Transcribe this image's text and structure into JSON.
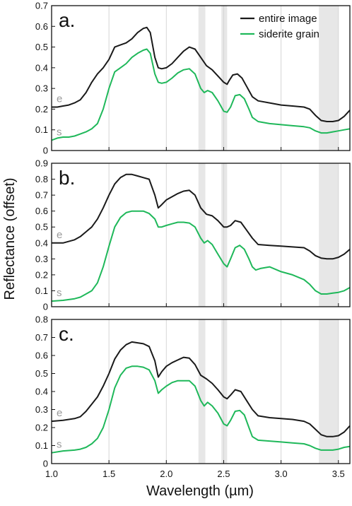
{
  "colors": {
    "entire": "#1a1a1a",
    "siderite": "#1fb85a",
    "band": "#e7e7e7",
    "grid": "#d6d6d6",
    "curve_letter": "#9a9a9a"
  },
  "chart_data": {
    "type": "line",
    "xlabel": "Wavelength (µm)",
    "ylabel": "Reflectance (offset)",
    "xlim": [
      1.0,
      3.6
    ],
    "x_ticks": [
      "1.0",
      "1.5",
      "2.0",
      "2.5",
      "3.0",
      "3.5"
    ],
    "x_tick_values": [
      1.0,
      1.5,
      2.0,
      2.5,
      3.0,
      3.5
    ],
    "grid_x": [
      1.5,
      2.0,
      2.5,
      3.0,
      3.5
    ],
    "shaded_bands": [
      [
        2.28,
        2.34
      ],
      [
        2.48,
        2.53
      ],
      [
        3.33,
        3.5
      ]
    ],
    "legend": {
      "placement": "top-right",
      "entries": [
        {
          "label": "entire image",
          "color": "#1a1a1a"
        },
        {
          "label": "siderite grain",
          "color": "#1fb85a"
        }
      ]
    },
    "panels": [
      {
        "label": "a.",
        "ylim": [
          0,
          0.7
        ],
        "y_ticks": [
          "0",
          "0.1",
          "0.2",
          "0.3",
          "0.4",
          "0.5",
          "0.6",
          "0.7"
        ],
        "series": [
          {
            "name": "entire image",
            "tag": "e",
            "x": [
              1.0,
              1.05,
              1.1,
              1.15,
              1.2,
              1.25,
              1.3,
              1.35,
              1.4,
              1.45,
              1.5,
              1.55,
              1.6,
              1.65,
              1.7,
              1.75,
              1.8,
              1.83,
              1.86,
              1.9,
              1.93,
              1.96,
              2.0,
              2.05,
              2.1,
              2.15,
              2.2,
              2.25,
              2.3,
              2.35,
              2.4,
              2.45,
              2.5,
              2.53,
              2.55,
              2.58,
              2.62,
              2.66,
              2.7,
              2.75,
              2.8,
              2.9,
              3.0,
              3.1,
              3.2,
              3.25,
              3.3,
              3.35,
              3.4,
              3.45,
              3.5,
              3.55,
              3.6
            ],
            "y": [
              0.21,
              0.21,
              0.215,
              0.22,
              0.23,
              0.245,
              0.28,
              0.33,
              0.37,
              0.4,
              0.44,
              0.5,
              0.51,
              0.52,
              0.54,
              0.57,
              0.59,
              0.595,
              0.57,
              0.45,
              0.4,
              0.395,
              0.4,
              0.42,
              0.45,
              0.48,
              0.5,
              0.49,
              0.45,
              0.41,
              0.39,
              0.36,
              0.33,
              0.32,
              0.34,
              0.365,
              0.37,
              0.35,
              0.31,
              0.26,
              0.24,
              0.23,
              0.22,
              0.215,
              0.21,
              0.2,
              0.17,
              0.145,
              0.14,
              0.14,
              0.145,
              0.165,
              0.195
            ]
          },
          {
            "name": "siderite grain",
            "tag": "s",
            "x": [
              1.0,
              1.05,
              1.1,
              1.15,
              1.2,
              1.25,
              1.3,
              1.35,
              1.4,
              1.45,
              1.5,
              1.55,
              1.6,
              1.65,
              1.7,
              1.75,
              1.8,
              1.83,
              1.86,
              1.9,
              1.93,
              1.96,
              2.0,
              2.05,
              2.1,
              2.15,
              2.2,
              2.25,
              2.3,
              2.33,
              2.36,
              2.4,
              2.45,
              2.5,
              2.53,
              2.56,
              2.6,
              2.64,
              2.68,
              2.72,
              2.75,
              2.8,
              2.9,
              3.0,
              3.1,
              3.2,
              3.25,
              3.3,
              3.35,
              3.4,
              3.45,
              3.5,
              3.55,
              3.6
            ],
            "y": [
              0.05,
              0.06,
              0.065,
              0.065,
              0.07,
              0.08,
              0.09,
              0.105,
              0.13,
              0.2,
              0.3,
              0.38,
              0.4,
              0.42,
              0.45,
              0.47,
              0.485,
              0.49,
              0.47,
              0.37,
              0.33,
              0.325,
              0.33,
              0.35,
              0.375,
              0.39,
              0.395,
              0.37,
              0.3,
              0.28,
              0.29,
              0.28,
              0.24,
              0.19,
              0.185,
              0.21,
              0.265,
              0.27,
              0.25,
              0.2,
              0.16,
              0.14,
              0.13,
              0.125,
              0.12,
              0.115,
              0.11,
              0.095,
              0.085,
              0.085,
              0.09,
              0.095,
              0.1,
              0.105
            ]
          }
        ]
      },
      {
        "label": "b.",
        "ylim": [
          0,
          0.9
        ],
        "y_ticks": [
          "0",
          "0.1",
          "0.2",
          "0.3",
          "0.4",
          "0.5",
          "0.6",
          "0.7",
          "0.8",
          "0.9"
        ],
        "series": [
          {
            "name": "entire image",
            "tag": "e",
            "x": [
              1.0,
              1.1,
              1.2,
              1.25,
              1.3,
              1.35,
              1.4,
              1.45,
              1.5,
              1.55,
              1.6,
              1.65,
              1.7,
              1.75,
              1.8,
              1.85,
              1.9,
              1.93,
              1.96,
              2.0,
              2.05,
              2.1,
              2.15,
              2.2,
              2.25,
              2.3,
              2.35,
              2.4,
              2.45,
              2.5,
              2.53,
              2.56,
              2.6,
              2.65,
              2.7,
              2.75,
              2.8,
              2.9,
              3.0,
              3.1,
              3.2,
              3.25,
              3.3,
              3.35,
              3.4,
              3.45,
              3.5,
              3.55,
              3.6
            ],
            "y": [
              0.4,
              0.4,
              0.42,
              0.44,
              0.47,
              0.5,
              0.55,
              0.62,
              0.7,
              0.77,
              0.81,
              0.83,
              0.83,
              0.82,
              0.81,
              0.8,
              0.7,
              0.62,
              0.64,
              0.67,
              0.69,
              0.71,
              0.725,
              0.73,
              0.7,
              0.62,
              0.58,
              0.57,
              0.54,
              0.5,
              0.5,
              0.51,
              0.54,
              0.53,
              0.48,
              0.43,
              0.39,
              0.385,
              0.38,
              0.375,
              0.37,
              0.35,
              0.32,
              0.305,
              0.3,
              0.3,
              0.31,
              0.33,
              0.36
            ]
          },
          {
            "name": "siderite grain",
            "tag": "s",
            "x": [
              1.0,
              1.1,
              1.2,
              1.25,
              1.3,
              1.35,
              1.4,
              1.45,
              1.5,
              1.55,
              1.6,
              1.65,
              1.7,
              1.75,
              1.8,
              1.85,
              1.9,
              1.93,
              1.96,
              2.0,
              2.05,
              2.1,
              2.15,
              2.2,
              2.25,
              2.3,
              2.33,
              2.36,
              2.4,
              2.45,
              2.5,
              2.53,
              2.56,
              2.6,
              2.64,
              2.68,
              2.72,
              2.75,
              2.78,
              2.82,
              2.9,
              3.0,
              3.1,
              3.2,
              3.25,
              3.3,
              3.35,
              3.4,
              3.45,
              3.5,
              3.55,
              3.6
            ],
            "y": [
              0.035,
              0.04,
              0.05,
              0.06,
              0.08,
              0.1,
              0.15,
              0.25,
              0.38,
              0.5,
              0.56,
              0.59,
              0.6,
              0.6,
              0.6,
              0.585,
              0.55,
              0.5,
              0.5,
              0.51,
              0.52,
              0.53,
              0.53,
              0.525,
              0.5,
              0.43,
              0.4,
              0.415,
              0.39,
              0.33,
              0.27,
              0.25,
              0.3,
              0.37,
              0.385,
              0.36,
              0.3,
              0.25,
              0.23,
              0.24,
              0.25,
              0.22,
              0.2,
              0.17,
              0.14,
              0.1,
              0.08,
              0.08,
              0.085,
              0.09,
              0.1,
              0.12
            ]
          }
        ]
      },
      {
        "label": "c.",
        "ylim": [
          0,
          0.8
        ],
        "y_ticks": [
          "0",
          "0.1",
          "0.2",
          "0.3",
          "0.4",
          "0.5",
          "0.6",
          "0.7",
          "0.8"
        ],
        "series": [
          {
            "name": "entire image",
            "tag": "e",
            "x": [
              1.0,
              1.1,
              1.2,
              1.25,
              1.3,
              1.35,
              1.4,
              1.45,
              1.5,
              1.55,
              1.6,
              1.65,
              1.7,
              1.75,
              1.8,
              1.85,
              1.9,
              1.93,
              1.96,
              2.0,
              2.05,
              2.1,
              2.15,
              2.2,
              2.25,
              2.3,
              2.35,
              2.4,
              2.45,
              2.5,
              2.53,
              2.56,
              2.6,
              2.65,
              2.7,
              2.75,
              2.8,
              2.9,
              3.0,
              3.1,
              3.2,
              3.25,
              3.3,
              3.35,
              3.4,
              3.45,
              3.5,
              3.55,
              3.6
            ],
            "y": [
              0.235,
              0.24,
              0.25,
              0.26,
              0.29,
              0.33,
              0.37,
              0.43,
              0.5,
              0.58,
              0.63,
              0.66,
              0.675,
              0.67,
              0.665,
              0.65,
              0.57,
              0.48,
              0.51,
              0.54,
              0.56,
              0.575,
              0.59,
              0.585,
              0.55,
              0.49,
              0.47,
              0.445,
              0.41,
              0.37,
              0.36,
              0.38,
              0.41,
              0.4,
              0.35,
              0.3,
              0.265,
              0.255,
              0.25,
              0.245,
              0.235,
              0.22,
              0.19,
              0.16,
              0.15,
              0.15,
              0.155,
              0.175,
              0.21
            ]
          },
          {
            "name": "siderite grain",
            "tag": "s",
            "x": [
              1.0,
              1.1,
              1.2,
              1.25,
              1.3,
              1.35,
              1.4,
              1.45,
              1.5,
              1.55,
              1.6,
              1.65,
              1.7,
              1.75,
              1.8,
              1.85,
              1.9,
              1.93,
              1.96,
              2.0,
              2.05,
              2.1,
              2.15,
              2.2,
              2.25,
              2.3,
              2.33,
              2.36,
              2.4,
              2.45,
              2.5,
              2.53,
              2.56,
              2.6,
              2.64,
              2.68,
              2.72,
              2.75,
              2.8,
              2.9,
              3.0,
              3.1,
              3.2,
              3.25,
              3.3,
              3.35,
              3.4,
              3.45,
              3.5,
              3.55,
              3.6
            ],
            "y": [
              0.06,
              0.07,
              0.075,
              0.08,
              0.09,
              0.11,
              0.14,
              0.2,
              0.3,
              0.42,
              0.49,
              0.53,
              0.54,
              0.54,
              0.535,
              0.52,
              0.46,
              0.39,
              0.41,
              0.43,
              0.45,
              0.46,
              0.46,
              0.46,
              0.43,
              0.35,
              0.32,
              0.34,
              0.32,
              0.28,
              0.22,
              0.21,
              0.24,
              0.29,
              0.295,
              0.27,
              0.2,
              0.15,
              0.13,
              0.125,
              0.12,
              0.115,
              0.11,
              0.1,
              0.085,
              0.075,
              0.075,
              0.075,
              0.08,
              0.09,
              0.095
            ]
          }
        ]
      }
    ]
  }
}
